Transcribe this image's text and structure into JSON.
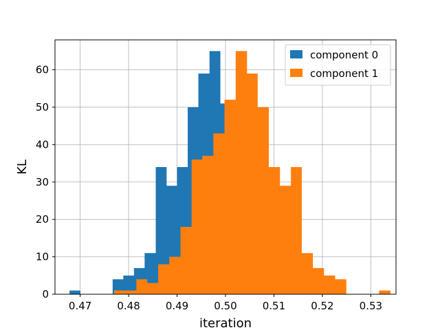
{
  "chart_data": {
    "type": "bar",
    "title": "",
    "xlabel": "iteration",
    "ylabel": "KL",
    "xlim": [
      0.4648,
      0.5352
    ],
    "ylim": [
      0,
      68
    ],
    "xticks": [
      0.47,
      0.48,
      0.49,
      0.5,
      0.51,
      0.52,
      0.53
    ],
    "xtick_labels": [
      "0.47",
      "0.48",
      "0.49",
      "0.50",
      "0.51",
      "0.52",
      "0.53"
    ],
    "yticks": [
      0,
      10,
      20,
      30,
      40,
      50,
      60
    ],
    "ytick_labels": [
      "0",
      "10",
      "20",
      "30",
      "40",
      "50",
      "60"
    ],
    "grid": true,
    "legend_position": "top-right",
    "series": [
      {
        "name": "component 0",
        "color": "#1f77b4",
        "bins": [
          {
            "x0": 0.4678,
            "x1": 0.47,
            "count": 1
          },
          {
            "x0": 0.47,
            "x1": 0.4722,
            "count": 0
          },
          {
            "x0": 0.4722,
            "x1": 0.4744,
            "count": 0
          },
          {
            "x0": 0.4744,
            "x1": 0.4767,
            "count": 0
          },
          {
            "x0": 0.4767,
            "x1": 0.4789,
            "count": 4
          },
          {
            "x0": 0.4789,
            "x1": 0.4811,
            "count": 5
          },
          {
            "x0": 0.4811,
            "x1": 0.4833,
            "count": 7
          },
          {
            "x0": 0.4833,
            "x1": 0.4856,
            "count": 11
          },
          {
            "x0": 0.4856,
            "x1": 0.4878,
            "count": 34
          },
          {
            "x0": 0.4878,
            "x1": 0.49,
            "count": 29
          },
          {
            "x0": 0.49,
            "x1": 0.4922,
            "count": 34
          },
          {
            "x0": 0.4922,
            "x1": 0.4944,
            "count": 50
          },
          {
            "x0": 0.4944,
            "x1": 0.4967,
            "count": 59
          },
          {
            "x0": 0.4967,
            "x1": 0.4989,
            "count": 65
          },
          {
            "x0": 0.4989,
            "x1": 0.5011,
            "count": 51
          },
          {
            "x0": 0.5011,
            "x1": 0.5033,
            "count": 45
          },
          {
            "x0": 0.5033,
            "x1": 0.5056,
            "count": 39
          },
          {
            "x0": 0.5056,
            "x1": 0.5078,
            "count": 36
          },
          {
            "x0": 0.5078,
            "x1": 0.51,
            "count": 25
          },
          {
            "x0": 0.51,
            "x1": 0.5122,
            "count": 20
          },
          {
            "x0": 0.5122,
            "x1": 0.5144,
            "count": 12
          },
          {
            "x0": 0.5144,
            "x1": 0.5167,
            "count": 7
          },
          {
            "x0": 0.5167,
            "x1": 0.5189,
            "count": 4
          },
          {
            "x0": 0.5189,
            "x1": 0.5211,
            "count": 2
          },
          {
            "x0": 0.5211,
            "x1": 0.5233,
            "count": 1
          }
        ]
      },
      {
        "name": "component 1",
        "color": "#ff7f0e",
        "bins": [
          {
            "x0": 0.477,
            "x1": 0.4793,
            "count": 1
          },
          {
            "x0": 0.4793,
            "x1": 0.4816,
            "count": 1
          },
          {
            "x0": 0.4816,
            "x1": 0.4838,
            "count": 4
          },
          {
            "x0": 0.4838,
            "x1": 0.4861,
            "count": 3
          },
          {
            "x0": 0.4861,
            "x1": 0.4884,
            "count": 8
          },
          {
            "x0": 0.4884,
            "x1": 0.4907,
            "count": 10
          },
          {
            "x0": 0.4907,
            "x1": 0.493,
            "count": 18
          },
          {
            "x0": 0.493,
            "x1": 0.4952,
            "count": 36
          },
          {
            "x0": 0.4952,
            "x1": 0.4975,
            "count": 37
          },
          {
            "x0": 0.4975,
            "x1": 0.4998,
            "count": 43
          },
          {
            "x0": 0.4998,
            "x1": 0.5021,
            "count": 52
          },
          {
            "x0": 0.5021,
            "x1": 0.5044,
            "count": 65
          },
          {
            "x0": 0.5044,
            "x1": 0.5066,
            "count": 59
          },
          {
            "x0": 0.5066,
            "x1": 0.5089,
            "count": 50
          },
          {
            "x0": 0.5089,
            "x1": 0.5112,
            "count": 34
          },
          {
            "x0": 0.5112,
            "x1": 0.5135,
            "count": 29
          },
          {
            "x0": 0.5135,
            "x1": 0.5157,
            "count": 34
          },
          {
            "x0": 0.5157,
            "x1": 0.518,
            "count": 11
          },
          {
            "x0": 0.518,
            "x1": 0.5203,
            "count": 7
          },
          {
            "x0": 0.5203,
            "x1": 0.5226,
            "count": 5
          },
          {
            "x0": 0.5226,
            "x1": 0.5249,
            "count": 4
          },
          {
            "x0": 0.5249,
            "x1": 0.5272,
            "count": 0
          },
          {
            "x0": 0.5272,
            "x1": 0.5295,
            "count": 0
          },
          {
            "x0": 0.5295,
            "x1": 0.5317,
            "count": 0
          },
          {
            "x0": 0.5317,
            "x1": 0.534,
            "count": 1
          }
        ]
      }
    ]
  }
}
